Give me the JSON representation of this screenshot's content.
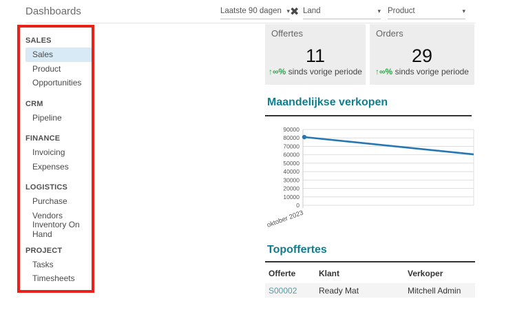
{
  "window": {
    "title": "Dashboards"
  },
  "filters": {
    "period": {
      "value": "Laatste 90 dagen",
      "caret": "▾",
      "clear_icon": "✖"
    },
    "country": {
      "value": "Land",
      "caret": "▾"
    },
    "product": {
      "value": "Product",
      "caret": "▾"
    }
  },
  "sidebar": {
    "sections": [
      {
        "header": "SALES",
        "items": [
          {
            "label": "Sales",
            "selected": true
          },
          {
            "label": "Product"
          },
          {
            "label": "Opportunities"
          }
        ]
      },
      {
        "header": "CRM",
        "items": [
          {
            "label": "Pipeline"
          }
        ]
      },
      {
        "header": "FINANCE",
        "items": [
          {
            "label": "Invoicing"
          },
          {
            "label": "Expenses"
          }
        ]
      },
      {
        "header": "LOGISTICS",
        "items": [
          {
            "label": "Purchase"
          },
          {
            "label": "Vendors"
          },
          {
            "label": "Inventory On Hand"
          }
        ]
      },
      {
        "header": "PROJECT",
        "items": [
          {
            "label": "Tasks"
          },
          {
            "label": "Timesheets"
          }
        ]
      }
    ]
  },
  "kpis": [
    {
      "title": "Offertes",
      "value": "11",
      "delta_arrow": "↑",
      "delta_value": "∞%",
      "delta_text": "sinds vorige periode"
    },
    {
      "title": "Orders",
      "value": "29",
      "delta_arrow": "↑",
      "delta_value": "∞%",
      "delta_text": "sinds vorige periode"
    }
  ],
  "chart_data": {
    "type": "line",
    "title": "Maandelijkse verkopen",
    "x_tick_labels": [
      "oktober 2023"
    ],
    "points": [
      {
        "x_index": 0,
        "y": 81000
      },
      {
        "x_index": 1,
        "y": 60500
      }
    ],
    "ylim": [
      0,
      90000
    ],
    "ytick_step": 10000,
    "grid": true,
    "legend": false,
    "line_color": "#2577b4",
    "marker_on_first_point": true
  },
  "table": {
    "title": "Topoffertes",
    "columns": [
      "Offerte",
      "Klant",
      "Verkoper"
    ],
    "rows": [
      [
        "S00002",
        "Ready Mat",
        "Mitchell Admin"
      ]
    ]
  },
  "colors": {
    "accent_teal": "#0e7f8e",
    "link_teal": "#5a99a6",
    "delta_green": "#28a745",
    "chart_line_blue": "#2577b4",
    "card_bg": "#ededed",
    "sidebar_selected_bg": "#d8eaf6",
    "annotation_red": "#e8221a"
  },
  "annotation": {
    "shape": "red-rectangle-highlighting-sidebar"
  }
}
